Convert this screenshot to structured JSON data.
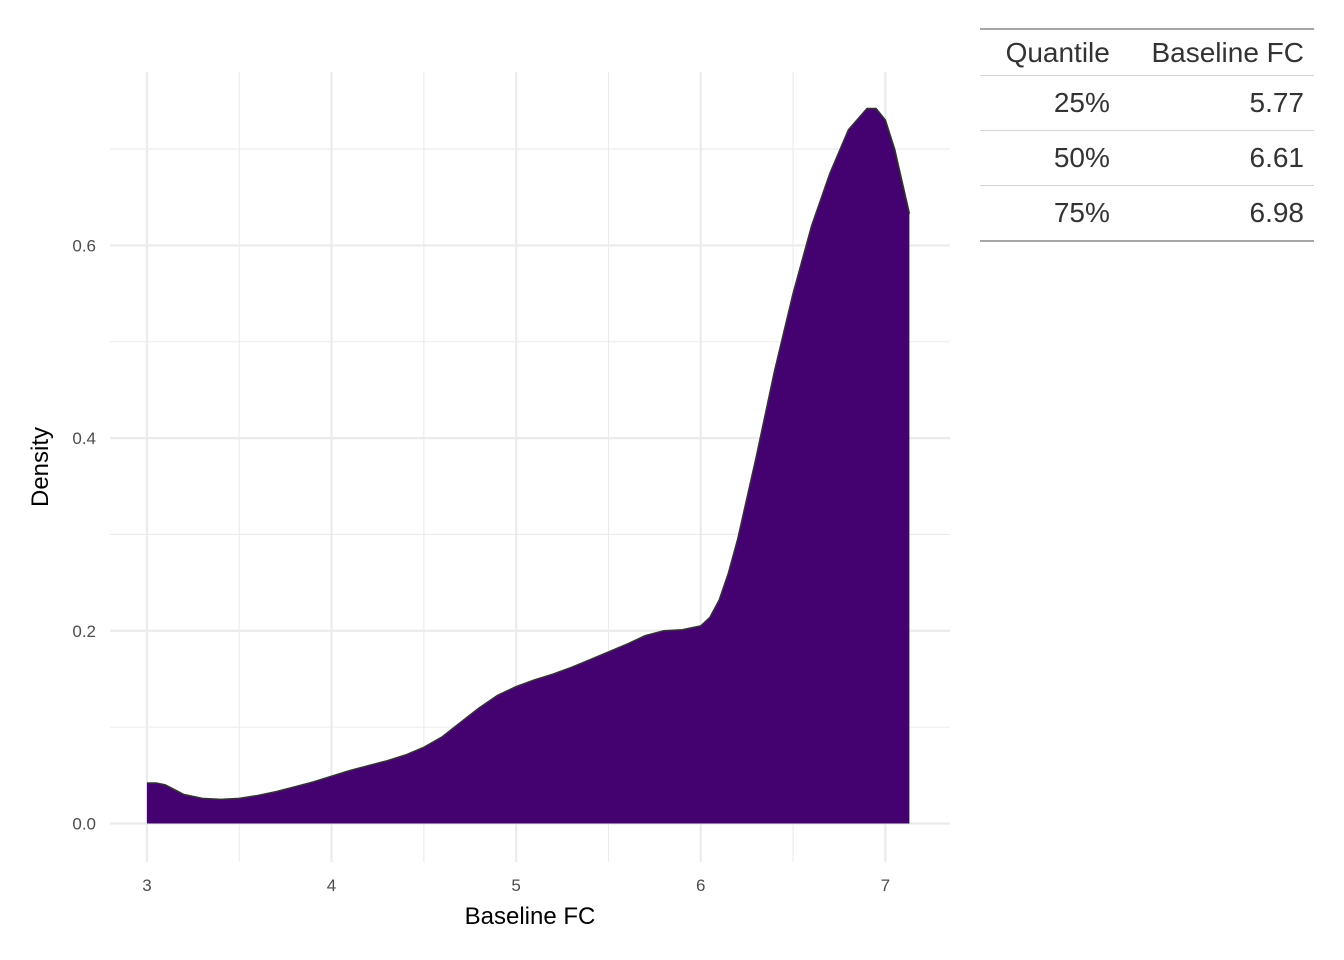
{
  "chart_data": {
    "type": "area",
    "xlabel": "Baseline FC",
    "ylabel": "Density",
    "xlim": [
      2.8,
      7.35
    ],
    "ylim": [
      -0.04,
      0.78
    ],
    "x_ticks": [
      3,
      4,
      5,
      6,
      7
    ],
    "y_ticks": [
      0.0,
      0.2,
      0.4,
      0.6
    ],
    "x_tick_labels": [
      "3",
      "4",
      "5",
      "6",
      "7"
    ],
    "y_tick_labels": [
      "0.0",
      "0.2",
      "0.4",
      "0.6"
    ],
    "x_minor": [
      3.5,
      4.5,
      5.5,
      6.5
    ],
    "y_minor": [
      0.1,
      0.3,
      0.5,
      0.7
    ],
    "grid": true,
    "fill_color": "#440170",
    "line_color": "#333333",
    "grid_color": "#ebebeb",
    "x": [
      3.0,
      3.05,
      3.1,
      3.15,
      3.2,
      3.3,
      3.4,
      3.5,
      3.6,
      3.7,
      3.8,
      3.9,
      4.0,
      4.1,
      4.2,
      4.3,
      4.4,
      4.5,
      4.6,
      4.7,
      4.8,
      4.9,
      5.0,
      5.1,
      5.2,
      5.3,
      5.4,
      5.5,
      5.6,
      5.7,
      5.8,
      5.9,
      6.0,
      6.05,
      6.1,
      6.15,
      6.2,
      6.3,
      6.4,
      6.5,
      6.6,
      6.7,
      6.8,
      6.9,
      6.95,
      7.0,
      7.05,
      7.1,
      7.13
    ],
    "y": [
      0.042,
      0.042,
      0.04,
      0.035,
      0.03,
      0.026,
      0.025,
      0.026,
      0.029,
      0.033,
      0.038,
      0.043,
      0.049,
      0.055,
      0.06,
      0.065,
      0.071,
      0.079,
      0.09,
      0.105,
      0.12,
      0.133,
      0.142,
      0.149,
      0.155,
      0.162,
      0.17,
      0.178,
      0.186,
      0.195,
      0.2,
      0.201,
      0.205,
      0.214,
      0.232,
      0.26,
      0.295,
      0.38,
      0.47,
      0.55,
      0.62,
      0.675,
      0.72,
      0.742,
      0.742,
      0.73,
      0.7,
      0.658,
      0.633
    ]
  },
  "quantile_table": {
    "columns": [
      "Quantile",
      "Baseline FC"
    ],
    "rows": [
      {
        "quantile": "25%",
        "value": "5.77"
      },
      {
        "quantile": "50%",
        "value": "6.61"
      },
      {
        "quantile": "75%",
        "value": "6.98"
      }
    ]
  }
}
